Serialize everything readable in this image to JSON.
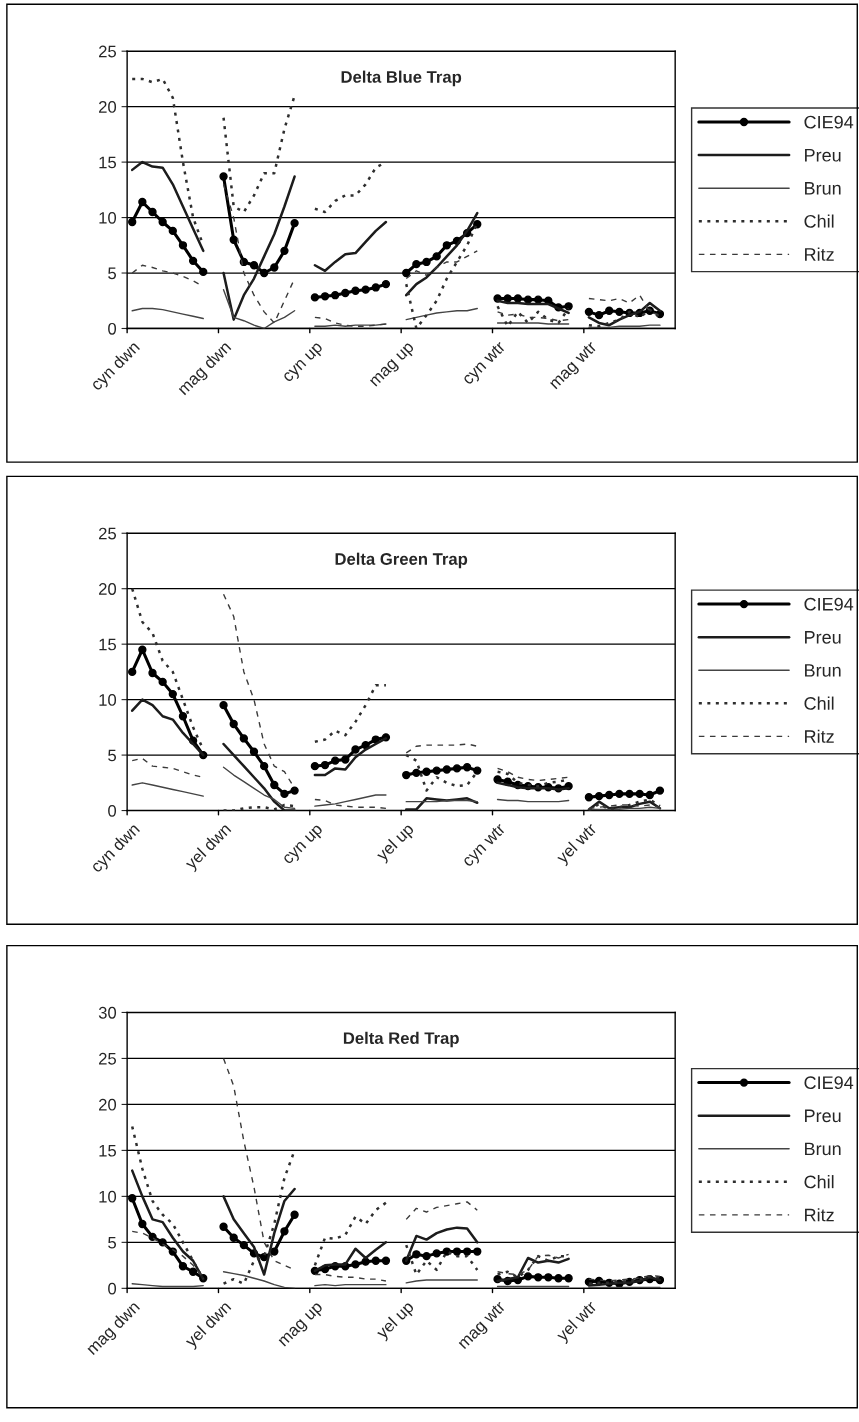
{
  "chart_data": [
    {
      "type": "line",
      "title": "Delta Blue Trap",
      "ylim": [
        0,
        25
      ],
      "yticks": [
        0,
        5,
        10,
        15,
        20,
        25
      ],
      "grid": "y",
      "legend": "right",
      "categories": [
        "cyn dwn",
        null,
        null,
        null,
        null,
        null,
        null,
        null,
        null,
        "mag dwn",
        null,
        null,
        null,
        null,
        null,
        null,
        null,
        null,
        "cyn up",
        null,
        null,
        null,
        null,
        null,
        null,
        null,
        null,
        "mag up",
        null,
        null,
        null,
        null,
        null,
        null,
        null,
        null,
        "cyn wtr",
        null,
        null,
        null,
        null,
        null,
        null,
        null,
        null,
        "mag wtr",
        null,
        null,
        null,
        null,
        null,
        null,
        null,
        null
      ],
      "series": [
        {
          "name": "CIE94",
          "color": "#000000",
          "marker": "circle",
          "line_style": "solid",
          "values": [
            9.6,
            11.4,
            10.5,
            9.6,
            8.8,
            7.5,
            6.1,
            5.1,
            null,
            13.7,
            8,
            6,
            5.7,
            5,
            5.5,
            7,
            9.5,
            null,
            2.8,
            2.9,
            3,
            3.2,
            3.4,
            3.5,
            3.7,
            4,
            null,
            5,
            5.8,
            6,
            6.5,
            7.5,
            7.9,
            8.6,
            9.4,
            null,
            2.7,
            2.7,
            2.7,
            2.6,
            2.6,
            2.5,
            1.9,
            2,
            null,
            1.5,
            1.2,
            1.6,
            1.5,
            1.4,
            1.4,
            1.6,
            1.3,
            null
          ]
        },
        {
          "name": "Preu",
          "color": "#1c1c1c",
          "marker": "none",
          "line_style": "solid",
          "values": [
            14.3,
            15,
            14.6,
            14.5,
            13,
            11,
            9,
            7,
            null,
            5,
            0.8,
            3,
            4.5,
            6.5,
            8.5,
            11,
            13.7,
            null,
            5.7,
            5.2,
            6,
            6.7,
            6.8,
            7.8,
            8.8,
            9.6,
            null,
            3,
            4,
            4.6,
            5.5,
            6.5,
            7.5,
            8.8,
            10.4,
            null,
            2.5,
            2.3,
            2.3,
            2.2,
            2.2,
            2.2,
            1.8,
            1.4,
            null,
            1,
            0.5,
            0.3,
            0.8,
            1.2,
            1.5,
            2.3,
            1.6,
            null
          ]
        },
        {
          "name": "Brun",
          "color": "#444444",
          "marker": "none",
          "line_style": "solid",
          "values": [
            1.6,
            1.8,
            1.8,
            1.7,
            1.5,
            1.3,
            1.1,
            0.9,
            null,
            3.5,
            1,
            0.7,
            0.3,
            0,
            0.6,
            1,
            1.6,
            null,
            0.2,
            0.2,
            0.3,
            0.2,
            0.3,
            0.3,
            0.3,
            0.4,
            null,
            0.8,
            1,
            1.2,
            1.4,
            1.5,
            1.6,
            1.6,
            1.8,
            null,
            0.5,
            0.5,
            0.5,
            0.5,
            0.5,
            0.4,
            0.4,
            0.4,
            null,
            0.1,
            0.1,
            0.1,
            0.2,
            0.2,
            0.2,
            0.3,
            0.3,
            null
          ]
        },
        {
          "name": "Chil",
          "color": "#2e2e2e",
          "marker": "none",
          "line_style": "dotted",
          "values": [
            22.5,
            22.5,
            22.2,
            22.5,
            20.8,
            15,
            10,
            7.5,
            null,
            19,
            11,
            10.5,
            12,
            14,
            14,
            18,
            21,
            null,
            10.8,
            10.5,
            11.5,
            12,
            12,
            13,
            14.5,
            15,
            null,
            4,
            0,
            1.2,
            2.5,
            4.5,
            6,
            7.5,
            9.5,
            null,
            2,
            0.2,
            1.5,
            0.5,
            1.5,
            0.8,
            0.5,
            1.8,
            null,
            0.3,
            0.2,
            0.5,
            0.8,
            1.5,
            1,
            1.7,
            1,
            null
          ]
        },
        {
          "name": "Ritz",
          "color": "#3a3a3a",
          "marker": "none",
          "line_style": "dashed",
          "values": [
            5,
            5.7,
            5.5,
            5.2,
            5,
            4.7,
            4.3,
            3.8,
            null,
            13,
            10,
            5,
            3,
            1.5,
            0.5,
            2.5,
            4.5,
            null,
            1,
            0.9,
            0.5,
            0.3,
            0.2,
            0.2,
            0.3,
            0.4,
            null,
            4.5,
            5.2,
            4.8,
            5.5,
            6,
            6,
            6.5,
            7,
            null,
            1.5,
            1.2,
            1.3,
            1,
            1,
            0.9,
            0.7,
            0.8,
            null,
            2.7,
            2.6,
            2.5,
            2.7,
            2.3,
            3,
            1.5,
            1.2,
            null
          ]
        }
      ]
    },
    {
      "type": "line",
      "title": "Delta Green Trap",
      "ylim": [
        0,
        25
      ],
      "yticks": [
        0,
        5,
        10,
        15,
        20,
        25
      ],
      "grid": "y",
      "legend": "right",
      "categories": [
        "cyn dwn",
        null,
        null,
        null,
        null,
        null,
        null,
        null,
        null,
        "yel dwn",
        null,
        null,
        null,
        null,
        null,
        null,
        null,
        null,
        "cyn up",
        null,
        null,
        null,
        null,
        null,
        null,
        null,
        null,
        "yel up",
        null,
        null,
        null,
        null,
        null,
        null,
        null,
        null,
        "cyn wtr",
        null,
        null,
        null,
        null,
        null,
        null,
        null,
        null,
        "yel wtr",
        null,
        null,
        null,
        null,
        null,
        null,
        null,
        null
      ],
      "series": [
        {
          "name": "CIE94",
          "color": "#000000",
          "marker": "circle",
          "line_style": "solid",
          "values": [
            12.5,
            14.5,
            12.4,
            11.6,
            10.5,
            8.5,
            6.3,
            5,
            null,
            9.5,
            7.8,
            6.5,
            5.3,
            4,
            2.3,
            1.5,
            1.8,
            null,
            4,
            4.1,
            4.5,
            4.6,
            5.5,
            5.9,
            6.4,
            6.6,
            null,
            3.2,
            3.4,
            3.5,
            3.6,
            3.7,
            3.8,
            3.9,
            3.6,
            null,
            2.8,
            2.6,
            2.3,
            2.2,
            2.1,
            2.1,
            2,
            2.2,
            null,
            1.2,
            1.3,
            1.4,
            1.5,
            1.5,
            1.5,
            1.4,
            1.8,
            null
          ]
        },
        {
          "name": "Preu",
          "color": "#1c1c1c",
          "marker": "none",
          "line_style": "solid",
          "values": [
            9,
            10,
            9.5,
            8.5,
            8.2,
            7,
            6,
            5,
            null,
            6,
            5,
            4,
            3,
            2,
            0.8,
            0,
            0,
            null,
            3.2,
            3.2,
            3.8,
            3.7,
            4.8,
            5.5,
            6,
            6.5,
            null,
            0.1,
            0.1,
            1.1,
            1,
            0.9,
            1,
            1.1,
            0.7,
            null,
            2.5,
            2.3,
            2.1,
            2,
            2,
            2,
            1.9,
            2,
            null,
            0.1,
            0.8,
            0.2,
            0.3,
            0.3,
            0.6,
            0.8,
            0.2,
            null
          ]
        },
        {
          "name": "Brun",
          "color": "#444444",
          "marker": "none",
          "line_style": "solid",
          "values": [
            2.3,
            2.5,
            2.3,
            2.1,
            1.9,
            1.7,
            1.5,
            1.3,
            null,
            3.9,
            3.2,
            2.6,
            2,
            1.4,
            1,
            0.3,
            0.2,
            null,
            0.4,
            0.5,
            0.6,
            0.8,
            1,
            1.2,
            1.4,
            1.4,
            null,
            0.8,
            0.8,
            0.8,
            0.8,
            0.9,
            0.9,
            0.9,
            0.8,
            null,
            1,
            0.9,
            0.9,
            0.8,
            0.8,
            0.8,
            0.8,
            0.9,
            null,
            0.1,
            0.1,
            0.1,
            0.1,
            0.2,
            0.2,
            0.3,
            0.2,
            null
          ]
        },
        {
          "name": "Chil",
          "color": "#2e2e2e",
          "marker": "none",
          "line_style": "dotted",
          "values": [
            20,
            17,
            16,
            13.5,
            12.5,
            10,
            7.5,
            5.5,
            null,
            0,
            0,
            0.2,
            0.3,
            0.3,
            0.1,
            0.5,
            0.4,
            null,
            6.2,
            6.4,
            7.2,
            6.8,
            8,
            9.5,
            11.3,
            11.3,
            null,
            5,
            4.5,
            1.8,
            3,
            2.5,
            2.2,
            2.3,
            3.5,
            null,
            3.5,
            3.3,
            2.5,
            2.3,
            2.2,
            2.5,
            2.6,
            2.8,
            null,
            0,
            0.6,
            0.1,
            0.3,
            0.5,
            0.8,
            1,
            0.4,
            null
          ]
        },
        {
          "name": "Ritz",
          "color": "#3a3a3a",
          "marker": "none",
          "line_style": "dashed",
          "values": [
            4.5,
            4.7,
            4,
            3.9,
            3.8,
            3.5,
            3.2,
            3,
            null,
            19.5,
            17.5,
            12.5,
            10,
            6,
            4,
            3.5,
            2,
            null,
            1,
            0.9,
            0.5,
            0.4,
            0.3,
            0.3,
            0.3,
            0.2,
            null,
            5.2,
            5.8,
            5.9,
            5.9,
            5.9,
            5.9,
            6,
            5.8,
            null,
            3.8,
            3.5,
            3,
            2.8,
            2.7,
            2.8,
            2.9,
            3,
            null,
            0.2,
            0.3,
            0.4,
            0.5,
            0.5,
            0.4,
            0.5,
            0.3,
            null
          ]
        }
      ]
    },
    {
      "type": "line",
      "title": "Delta Red Trap",
      "ylim": [
        0,
        30
      ],
      "yticks": [
        0,
        5,
        10,
        15,
        20,
        25,
        30
      ],
      "grid": "y",
      "legend": "right",
      "categories": [
        "mag dwn",
        null,
        null,
        null,
        null,
        null,
        null,
        null,
        null,
        "yel dwn",
        null,
        null,
        null,
        null,
        null,
        null,
        null,
        null,
        "mag up",
        null,
        null,
        null,
        null,
        null,
        null,
        null,
        null,
        "yel up",
        null,
        null,
        null,
        null,
        null,
        null,
        null,
        null,
        "mag wtr",
        null,
        null,
        null,
        null,
        null,
        null,
        null,
        null,
        "yel wtr",
        null,
        null,
        null,
        null,
        null,
        null,
        null,
        null
      ],
      "series": [
        {
          "name": "CIE94",
          "color": "#000000",
          "marker": "circle",
          "line_style": "solid",
          "values": [
            9.8,
            7,
            5.6,
            5,
            4,
            2.4,
            1.8,
            1.1,
            null,
            6.7,
            5.5,
            4.7,
            3.8,
            3.4,
            4,
            6.2,
            8,
            null,
            1.9,
            2.1,
            2.4,
            2.4,
            2.6,
            2.9,
            3,
            3,
            null,
            3,
            3.7,
            3.5,
            3.8,
            4,
            4,
            4,
            4,
            null,
            1,
            0.8,
            0.9,
            1.3,
            1.2,
            1.2,
            1.1,
            1.1,
            null,
            0.7,
            0.8,
            0.6,
            0.5,
            0.7,
            0.9,
            1,
            0.9,
            null
          ]
        },
        {
          "name": "Preu",
          "color": "#1c1c1c",
          "marker": "none",
          "line_style": "solid",
          "values": [
            12.8,
            10,
            7.5,
            7.2,
            5.5,
            4,
            3,
            1,
            null,
            10,
            7.5,
            6,
            4.5,
            1.5,
            6,
            9.5,
            10.8,
            null,
            1.9,
            2.5,
            2.6,
            2.6,
            4.3,
            3.3,
            4.2,
            5,
            null,
            3,
            5.7,
            5.3,
            6,
            6.4,
            6.6,
            6.5,
            5,
            null,
            0.8,
            1,
            1.2,
            3.3,
            2.8,
            3,
            2.8,
            3.2,
            null,
            0.3,
            0.4,
            0.5,
            0.6,
            0.6,
            0.8,
            1.2,
            0.9,
            null
          ]
        },
        {
          "name": "Brun",
          "color": "#444444",
          "marker": "none",
          "line_style": "solid",
          "values": [
            0.5,
            0.4,
            0.3,
            0.2,
            0.2,
            0.2,
            0.2,
            0.3,
            null,
            1.8,
            1.6,
            1.4,
            1.1,
            0.8,
            0.4,
            0.1,
            0,
            null,
            0.3,
            0.4,
            0.3,
            0.4,
            0.4,
            0.4,
            0.4,
            0.4,
            null,
            0.6,
            0.8,
            0.9,
            0.9,
            0.9,
            0.9,
            0.9,
            0.9,
            null,
            0.2,
            0.2,
            0.2,
            0.2,
            0.2,
            0.2,
            0.2,
            0.2,
            null,
            0.1,
            0.1,
            0.1,
            0.1,
            0.1,
            0.1,
            0.1,
            0.1,
            null
          ]
        },
        {
          "name": "Chil",
          "color": "#2e2e2e",
          "marker": "none",
          "line_style": "dotted",
          "values": [
            17.6,
            13,
            9.5,
            8,
            7,
            5,
            3,
            1,
            null,
            0.5,
            1,
            0.5,
            3,
            3.5,
            7,
            12,
            15,
            null,
            2.5,
            5.5,
            5.4,
            5.8,
            7.8,
            7,
            8.5,
            9.3,
            null,
            4.7,
            1.5,
            3,
            2,
            4,
            3.5,
            3.5,
            2,
            null,
            1.5,
            1.8,
            1.2,
            2,
            3.5,
            3,
            3.5,
            3.5,
            null,
            0.5,
            0.6,
            0.6,
            0.7,
            0.8,
            1,
            1.3,
            1.2,
            null
          ]
        },
        {
          "name": "Ritz",
          "color": "#3a3a3a",
          "marker": "none",
          "line_style": "dashed",
          "values": [
            6.2,
            6,
            5.5,
            4.8,
            4.2,
            3.5,
            2.5,
            1.2,
            null,
            25,
            22,
            16,
            11,
            5,
            3,
            2.5,
            2,
            null,
            1.5,
            1.5,
            1.3,
            1.2,
            1.2,
            1,
            1,
            0.8,
            null,
            7.5,
            8.7,
            8.3,
            8.8,
            9,
            9.2,
            9.4,
            8.5,
            null,
            1.8,
            1.6,
            1.5,
            2,
            3.5,
            3.6,
            3.3,
            3.7,
            null,
            1,
            0.9,
            0.8,
            0.9,
            1,
            1.1,
            1.4,
            1.3,
            null
          ]
        }
      ]
    }
  ]
}
